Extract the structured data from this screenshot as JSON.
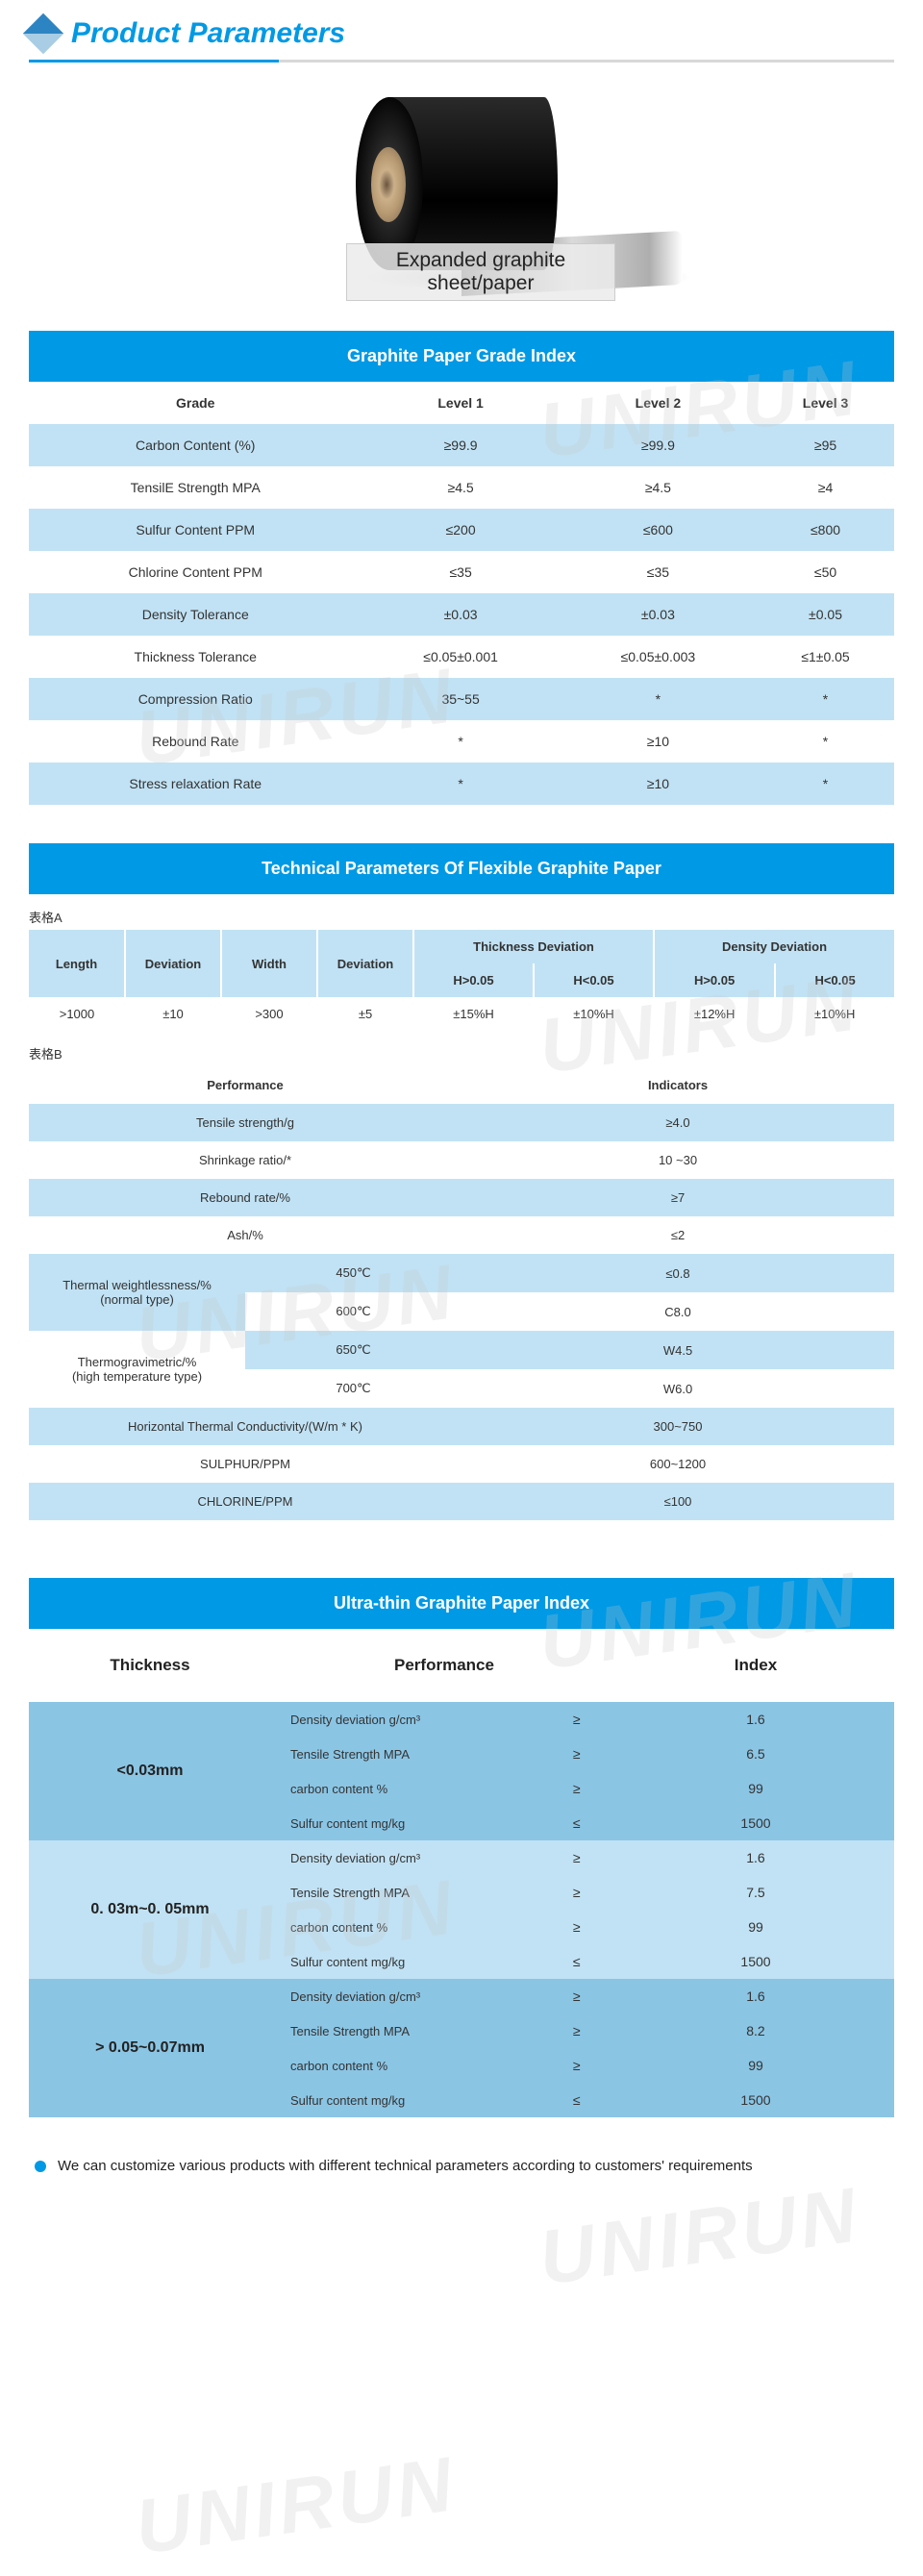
{
  "colors": {
    "accent": "#0099e5",
    "row_white": "#ffffff",
    "row_blue": "#c1e2f4",
    "row_deep": "#8bc5e4",
    "text": "#333333",
    "watermark": "rgba(200,200,200,0.25)"
  },
  "watermark_text": "UNIRUN",
  "header": {
    "title": "Product Parameters"
  },
  "product": {
    "caption": "Expanded graphite sheet/paper"
  },
  "grade_index": {
    "title": "Graphite Paper Grade Index",
    "columns": [
      "Grade",
      "Level 1",
      "Level 2",
      "Level 3"
    ],
    "rows": [
      [
        "Carbon Content (%)",
        "≥99.9",
        "≥99.9",
        "≥95"
      ],
      [
        "TensilE Strength MPA",
        "≥4.5",
        "≥4.5",
        "≥4"
      ],
      [
        "Sulfur Content PPM",
        "≤200",
        "≤600",
        "≤800"
      ],
      [
        "Chlorine Content PPM",
        "≤35",
        "≤35",
        "≤50"
      ],
      [
        "Density Tolerance",
        "±0.03",
        "±0.03",
        "±0.05"
      ],
      [
        "Thickness Tolerance",
        "≤0.05±0.001",
        "≤0.05±0.003",
        "≤1±0.05"
      ],
      [
        "Compression Ratio",
        "35~55",
        "*",
        "*"
      ],
      [
        "Rebound Rate",
        "*",
        "≥10",
        "*"
      ],
      [
        "Stress relaxation Rate",
        "*",
        "≥10",
        "*"
      ]
    ]
  },
  "tech_params": {
    "title": "Technical Parameters Of Flexible Graphite Paper",
    "label_a": "表格A",
    "table_a": {
      "headers": [
        "Length",
        "Deviation",
        "Width",
        "Deviation",
        "Thickness Deviation",
        "Density Deviation"
      ],
      "sub": [
        [
          "",
          "",
          "",
          "",
          "H>0.05",
          "H<0.05",
          "H>0.05",
          "H<0.05"
        ]
      ],
      "row": [
        ">1000",
        "±10",
        ">300",
        "±5",
        "±15%H",
        "±10%H",
        "±12%H",
        "±10%H"
      ]
    },
    "label_b": "表格B",
    "table_b": {
      "head": [
        "Performance",
        "Indicators"
      ],
      "simple_rows": [
        [
          "Tensile strength/g",
          "≥4.0"
        ],
        [
          "Shrinkage ratio/*",
          "10 ~30"
        ],
        [
          "Rebound rate/%",
          "≥7"
        ],
        [
          "Ash/%",
          "≤2"
        ]
      ],
      "group1_label": "Thermal weightlessness/%\n(normal type)",
      "group1": [
        [
          "450℃",
          "≤0.8"
        ],
        [
          "600℃",
          "C8.0"
        ]
      ],
      "group2_label": "Thermogravimetric/%\n(high temperature type)",
      "group2": [
        [
          "650℃",
          "W4.5"
        ],
        [
          "700℃",
          "W6.0"
        ]
      ],
      "tail_rows": [
        [
          "Horizontal Thermal Conductivity/(W/m * K)",
          "300~750"
        ],
        [
          "SULPHUR/PPM",
          "600~1200"
        ],
        [
          "CHLORINE/PPM",
          "≤100"
        ]
      ]
    }
  },
  "ultra": {
    "title": "Ultra-thin Graphite Paper Index",
    "head": [
      "Thickness",
      "Performance",
      "Index"
    ],
    "groups": [
      {
        "thickness": "<0.03mm",
        "rows": [
          [
            "Density deviation g/cm³",
            "≥",
            "1.6"
          ],
          [
            "Tensile Strength MPA",
            "≥",
            "6.5"
          ],
          [
            "carbon content %",
            "≥",
            "99"
          ],
          [
            "Sulfur content mg/kg",
            "≤",
            "1500"
          ]
        ]
      },
      {
        "thickness": "0. 03m~0. 05mm",
        "rows": [
          [
            "Density deviation g/cm³",
            "≥",
            "1.6"
          ],
          [
            "Tensile Strength MPA",
            "≥",
            "7.5"
          ],
          [
            "carbon content %",
            "≥",
            "99"
          ],
          [
            "Sulfur content mg/kg",
            "≤",
            "1500"
          ]
        ]
      },
      {
        "thickness": "> 0.05~0.07mm",
        "rows": [
          [
            "Density deviation g/cm³",
            "≥",
            "1.6"
          ],
          [
            "Tensile Strength MPA",
            "≥",
            "8.2"
          ],
          [
            "carbon content %",
            "≥",
            "99"
          ],
          [
            "Sulfur content mg/kg",
            "≤",
            "1500"
          ]
        ]
      }
    ]
  },
  "footer": "We can customize various products with different technical parameters according to customers' requirements"
}
